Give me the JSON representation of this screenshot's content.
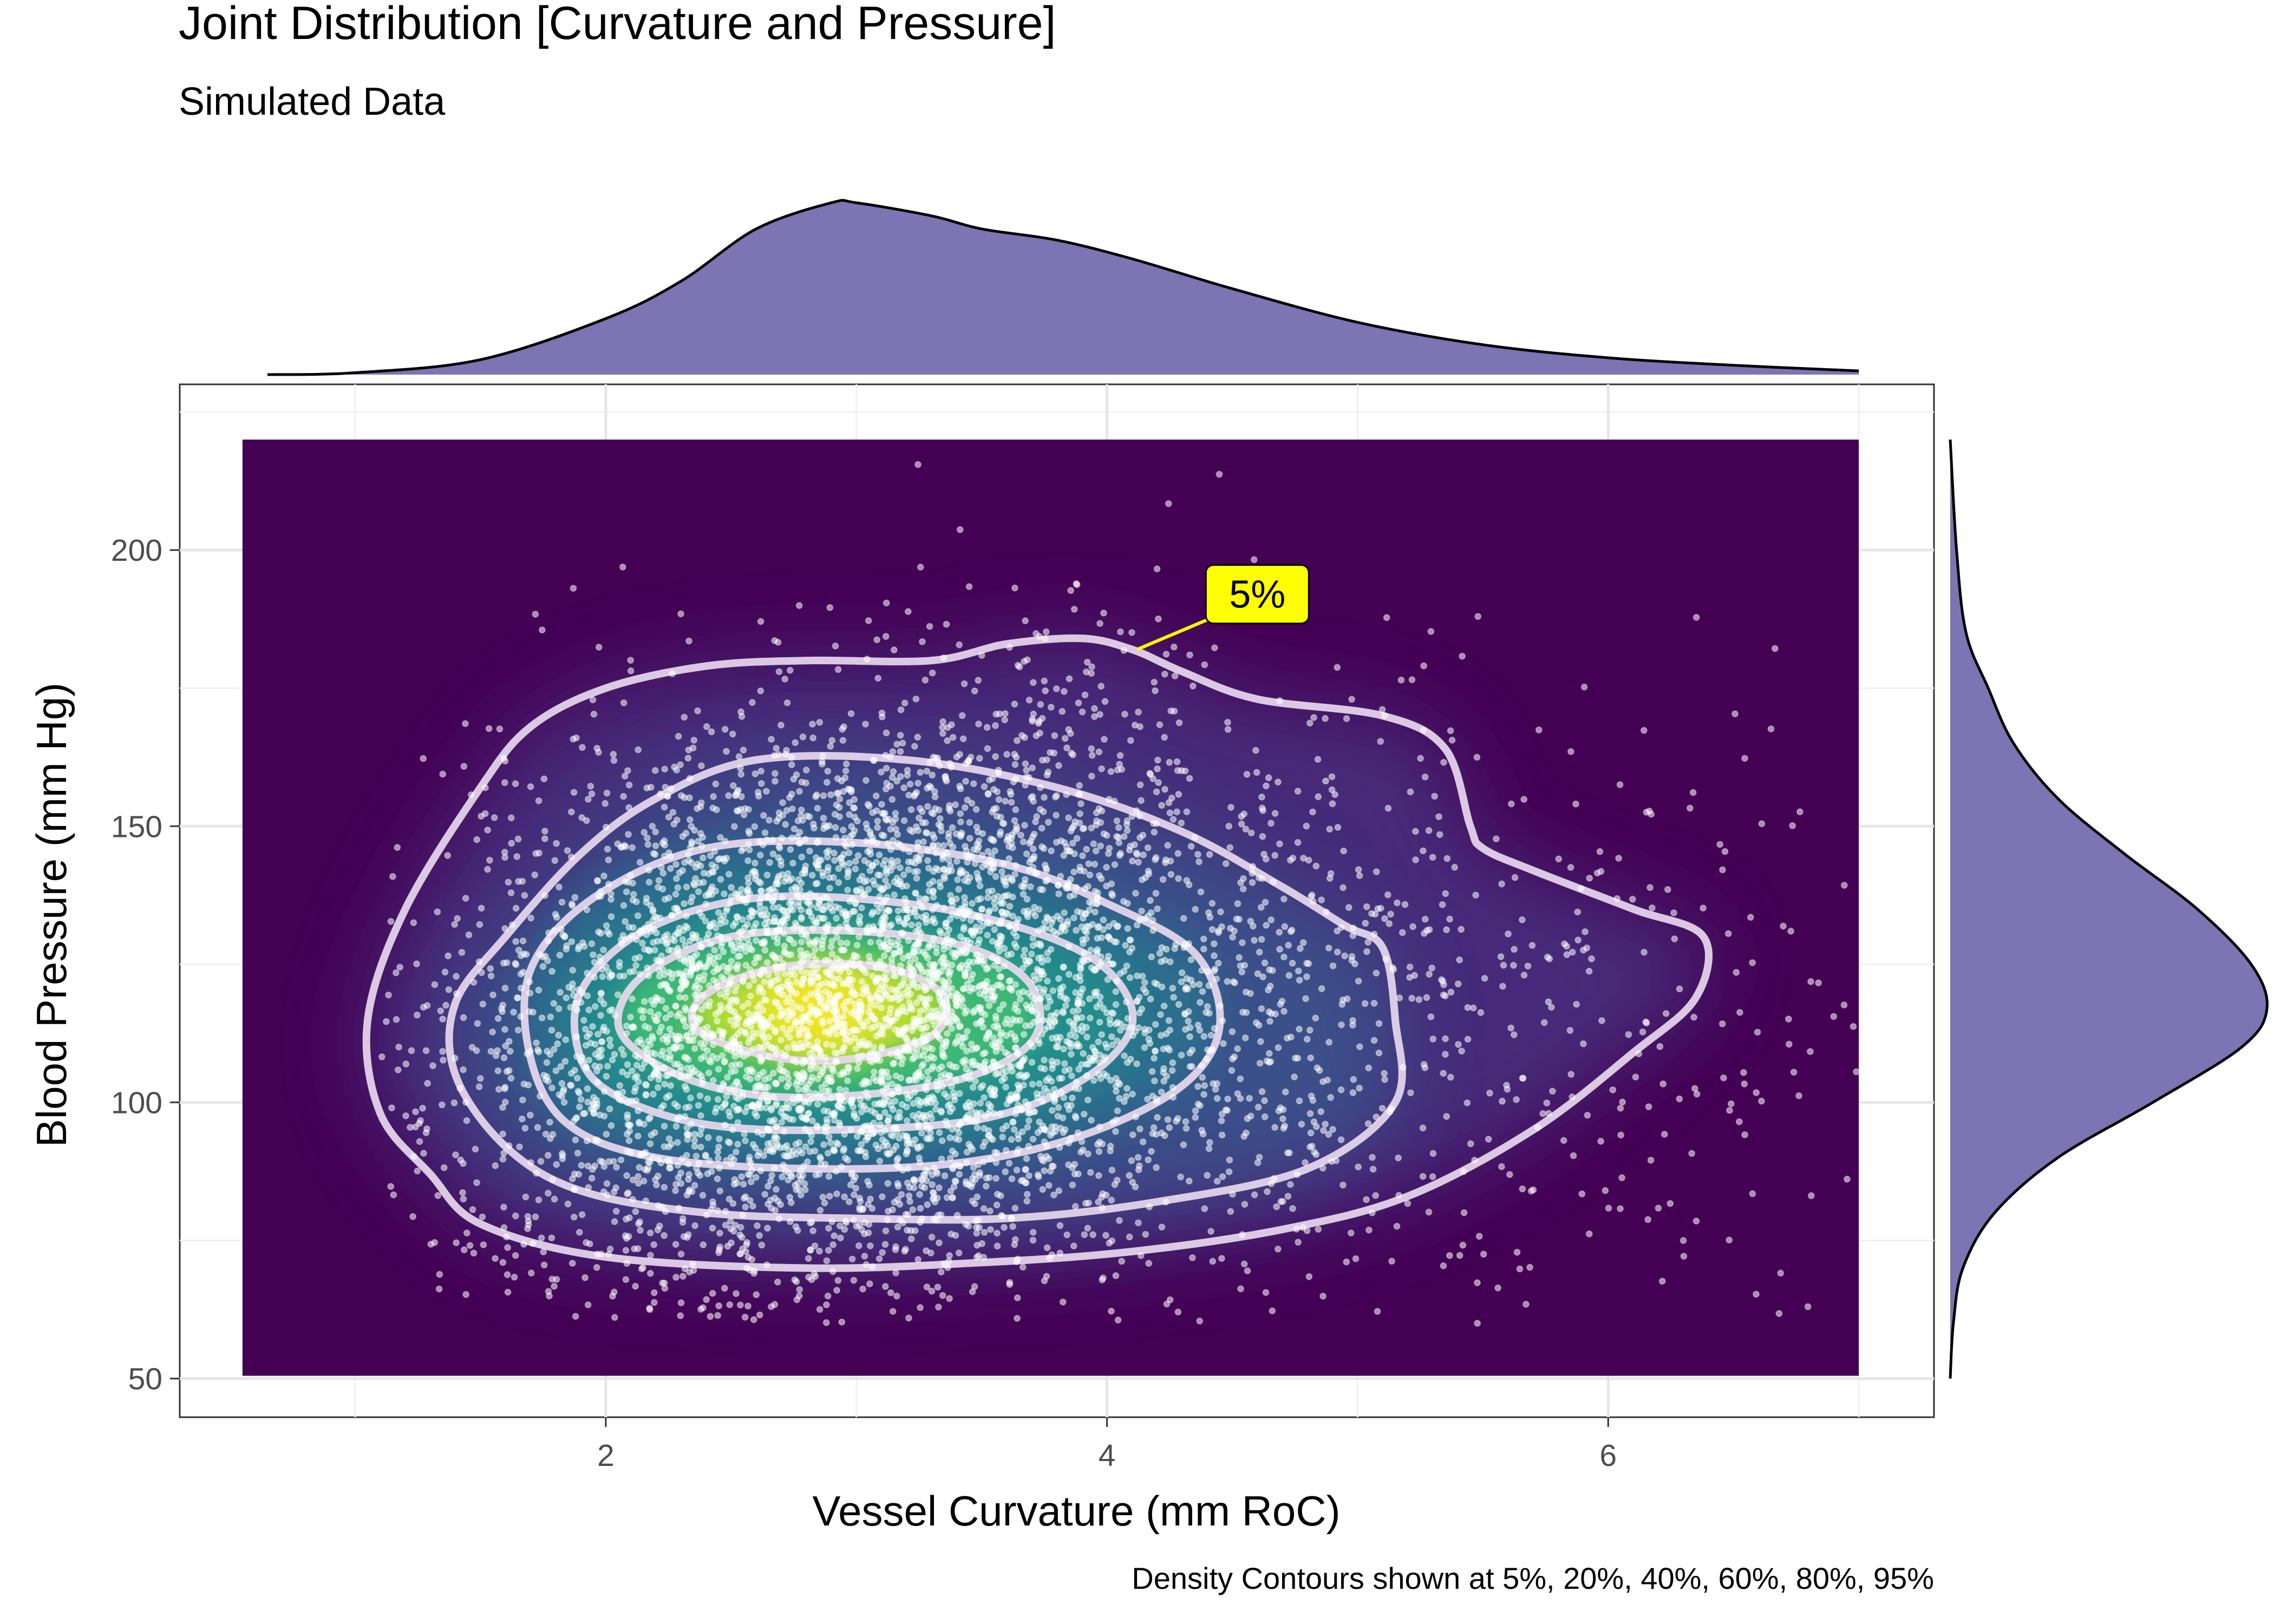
{
  "chart_data": {
    "type": "scatter",
    "title": "Joint Distribution [Curvature and Pressure]",
    "subtitle": "Simulated Data",
    "xlabel": "Vessel Curvature (mm RoC)",
    "ylabel": "Blood Pressure (mm Hg)",
    "caption": "Density Contours shown at 5%, 20%, 40%, 60%, 80%, 95%",
    "xlim": [
      0.3,
      7.3
    ],
    "ylim": [
      43,
      230
    ],
    "x_ticks": [
      2,
      4,
      6
    ],
    "y_ticks": [
      50,
      100,
      150,
      200
    ],
    "x_tick_labels": [
      "2",
      "4",
      "6"
    ],
    "y_tick_labels": [
      "50",
      "100",
      "150",
      "200"
    ],
    "grid": true,
    "density_extent": {
      "x": [
        0.55,
        7.0
      ],
      "y": [
        50.5,
        220
      ]
    },
    "density_peak": {
      "x": 2.85,
      "y": 117
    },
    "points": {
      "count": 6000,
      "center": {
        "x": 2.9,
        "y": 118
      },
      "sd": {
        "x": 0.95,
        "y": 25
      },
      "x_range": [
        1.1,
        7.0
      ],
      "y_range": [
        60,
        220
      ]
    },
    "contour_levels": [
      "5%",
      "20%",
      "40%",
      "60%",
      "80%",
      "95%"
    ],
    "contours": [
      {
        "level": "5%",
        "points": [
          [
            1.3,
            87
          ],
          [
            1.5,
            78
          ],
          [
            2.0,
            72
          ],
          [
            2.8,
            70
          ],
          [
            3.5,
            71
          ],
          [
            4.1,
            73
          ],
          [
            4.7,
            77
          ],
          [
            5.2,
            83
          ],
          [
            5.7,
            95
          ],
          [
            6.1,
            109
          ],
          [
            6.35,
            119
          ],
          [
            6.38,
            130
          ],
          [
            6.1,
            135
          ],
          [
            5.7,
            142
          ],
          [
            5.5,
            146
          ],
          [
            5.45,
            150
          ],
          [
            5.35,
            164
          ],
          [
            5.1,
            170
          ],
          [
            4.6,
            173
          ],
          [
            4.3,
            178
          ],
          [
            4.1,
            182
          ],
          [
            3.9,
            184
          ],
          [
            3.6,
            183
          ],
          [
            3.3,
            180
          ],
          [
            2.8,
            180
          ],
          [
            2.4,
            179
          ],
          [
            2.0,
            175
          ],
          [
            1.7,
            168
          ],
          [
            1.5,
            157
          ],
          [
            1.2,
            135
          ],
          [
            1.05,
            115
          ],
          [
            1.1,
            98
          ]
        ]
      },
      {
        "level": "20%",
        "points": [
          [
            1.6,
            92
          ],
          [
            1.9,
            84
          ],
          [
            2.4,
            80
          ],
          [
            3.0,
            79
          ],
          [
            3.6,
            79
          ],
          [
            4.2,
            82
          ],
          [
            4.8,
            88
          ],
          [
            5.15,
            100
          ],
          [
            5.15,
            115
          ],
          [
            5.1,
            128
          ],
          [
            4.95,
            132
          ],
          [
            4.7,
            139
          ],
          [
            4.3,
            149
          ],
          [
            3.8,
            157
          ],
          [
            3.2,
            162
          ],
          [
            2.6,
            162
          ],
          [
            2.2,
            155
          ],
          [
            1.9,
            145
          ],
          [
            1.6,
            130
          ],
          [
            1.4,
            118
          ],
          [
            1.4,
            105
          ]
        ]
      },
      {
        "level": "40%",
        "points": [
          [
            1.85,
            96
          ],
          [
            2.2,
            90
          ],
          [
            2.8,
            88
          ],
          [
            3.4,
            89
          ],
          [
            3.9,
            94
          ],
          [
            4.3,
            103
          ],
          [
            4.45,
            114
          ],
          [
            4.35,
            127
          ],
          [
            4.0,
            136
          ],
          [
            3.6,
            143
          ],
          [
            3.0,
            147
          ],
          [
            2.4,
            146
          ],
          [
            1.95,
            137
          ],
          [
            1.7,
            124
          ],
          [
            1.7,
            108
          ]
        ]
      },
      {
        "level": "60%",
        "points": [
          [
            2.05,
            101
          ],
          [
            2.4,
            96
          ],
          [
            2.9,
            95
          ],
          [
            3.5,
            97
          ],
          [
            3.9,
            104
          ],
          [
            4.1,
            114
          ],
          [
            4.0,
            124
          ],
          [
            3.7,
            131
          ],
          [
            3.2,
            136
          ],
          [
            2.6,
            137
          ],
          [
            2.15,
            131
          ],
          [
            1.9,
            120
          ],
          [
            1.9,
            108
          ]
        ]
      },
      {
        "level": "80%",
        "points": [
          [
            2.2,
            107
          ],
          [
            2.5,
            102
          ],
          [
            2.9,
            101
          ],
          [
            3.4,
            104
          ],
          [
            3.7,
            111
          ],
          [
            3.7,
            121
          ],
          [
            3.45,
            128
          ],
          [
            3.0,
            131
          ],
          [
            2.5,
            130
          ],
          [
            2.15,
            123
          ],
          [
            2.05,
            114
          ]
        ]
      },
      {
        "level": "95%",
        "points": [
          [
            2.4,
            112
          ],
          [
            2.7,
            108
          ],
          [
            3.0,
            108
          ],
          [
            3.3,
            112
          ],
          [
            3.35,
            119
          ],
          [
            3.15,
            124
          ],
          [
            2.8,
            125
          ],
          [
            2.5,
            122
          ],
          [
            2.35,
            117
          ]
        ]
      }
    ],
    "callout": {
      "label": "5%",
      "point": {
        "x": 4.12,
        "y": 182
      },
      "label_at": {
        "x": 4.6,
        "y": 192
      }
    },
    "marginal_x": {
      "type": "density",
      "fill": "#7b75b3",
      "points": [
        [
          0.65,
          0.0
        ],
        [
          1.0,
          0.01
        ],
        [
          1.5,
          0.08
        ],
        [
          2.0,
          0.3
        ],
        [
          2.3,
          0.5
        ],
        [
          2.6,
          0.78
        ],
        [
          2.9,
          0.92
        ],
        [
          3.0,
          0.92
        ],
        [
          3.3,
          0.85
        ],
        [
          3.5,
          0.78
        ],
        [
          3.8,
          0.72
        ],
        [
          4.1,
          0.62
        ],
        [
          4.5,
          0.46
        ],
        [
          5.0,
          0.28
        ],
        [
          5.5,
          0.16
        ],
        [
          6.0,
          0.09
        ],
        [
          6.5,
          0.05
        ],
        [
          7.0,
          0.02
        ]
      ]
    },
    "marginal_y": {
      "type": "density",
      "fill": "#7b75b3",
      "points": [
        [
          50,
          0.0
        ],
        [
          60,
          0.01
        ],
        [
          70,
          0.04
        ],
        [
          80,
          0.14
        ],
        [
          90,
          0.34
        ],
        [
          100,
          0.64
        ],
        [
          110,
          0.92
        ],
        [
          117,
          1.0
        ],
        [
          125,
          0.95
        ],
        [
          135,
          0.78
        ],
        [
          145,
          0.55
        ],
        [
          155,
          0.34
        ],
        [
          165,
          0.2
        ],
        [
          175,
          0.12
        ],
        [
          185,
          0.05
        ],
        [
          200,
          0.02
        ],
        [
          220,
          0.0
        ]
      ]
    },
    "colors": {
      "density_low": "#440154",
      "density_mid": "#31688e",
      "density_high": "#fde725",
      "contour_line": "#e8d9ee",
      "points": "#ffffff",
      "marginal_fill": "#7b75b3",
      "callout_fill": "#ffff00"
    }
  }
}
